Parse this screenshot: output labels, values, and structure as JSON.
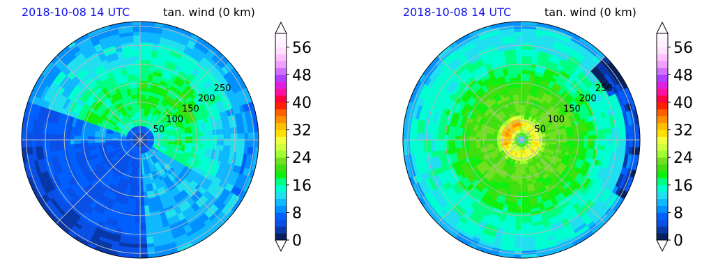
{
  "panels": [
    {
      "timestamp": "2018-10-08 14 UTC",
      "field": "tan. wind (0 km)",
      "ring_labels": [
        "50",
        "100",
        "150",
        "200",
        "250"
      ]
    },
    {
      "timestamp": "2018-10-08 14 UTC",
      "field": "tan. wind (0 km)",
      "ring_labels": [
        "50",
        "100",
        "150",
        "200",
        "250"
      ]
    }
  ],
  "colorbar": {
    "ticks": [
      "0",
      "8",
      "16",
      "24",
      "32",
      "40",
      "48",
      "56"
    ],
    "min": 0,
    "max": 60,
    "step": 2,
    "colors": [
      "#08205e",
      "#0838a8",
      "#0850e8",
      "#0060ff",
      "#0090ff",
      "#10b8ff",
      "#20e0f0",
      "#00ffd0",
      "#00ff80",
      "#10f010",
      "#40e010",
      "#70e020",
      "#a0ff30",
      "#d0ff40",
      "#f0ff40",
      "#ffe000",
      "#ffc000",
      "#ff9000",
      "#ff6000",
      "#ff2000",
      "#ff0040",
      "#ff10a0",
      "#e020e0",
      "#b040ff",
      "#d070ff",
      "#f0a0ff",
      "#ffc0ff",
      "#ffe0ff",
      "#fff0ff",
      "#fff8ff"
    ]
  },
  "chart_data": [
    {
      "type": "heatmap",
      "title": "tan. wind (0 km)",
      "subtitle": "2018-10-08 14 UTC",
      "projection": "polar",
      "radial_labels": [
        50,
        100,
        150,
        200,
        250
      ],
      "value_range": [
        0,
        60
      ],
      "colorbar_ticks": [
        0,
        8,
        16,
        24,
        32,
        40,
        48,
        56
      ]
    },
    {
      "type": "heatmap",
      "title": "tan. wind (0 km)",
      "subtitle": "2018-10-08 14 UTC",
      "projection": "polar",
      "radial_labels": [
        50,
        100,
        150,
        200,
        250
      ],
      "value_range": [
        0,
        60
      ],
      "colorbar_ticks": [
        0,
        8,
        16,
        24,
        32,
        40,
        48,
        56
      ]
    }
  ]
}
